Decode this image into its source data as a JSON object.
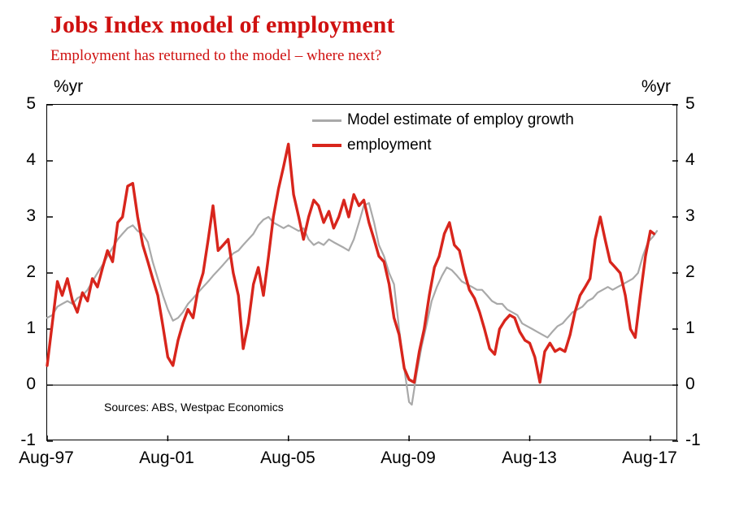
{
  "header": {
    "title": "Jobs Index model of employment",
    "subtitle": "Employment has returned to the model – where next?"
  },
  "chart": {
    "unit_left": "%yr",
    "unit_right": "%yr",
    "source_note": "Sources: ABS, Westpac Economics",
    "y_tick_labels": [
      "5",
      "4",
      "3",
      "2",
      "1",
      "0",
      "-1"
    ],
    "x_tick_labels": [
      "Aug-97",
      "Aug-01",
      "Aug-05",
      "Aug-09",
      "Aug-13",
      "Aug-17"
    ],
    "legend": [
      {
        "label": "Model estimate of employ growth",
        "color": "#a9a9a9"
      },
      {
        "label": "employment",
        "color": "#d8251c"
      }
    ]
  },
  "chart_data": {
    "type": "line",
    "title": "Jobs Index model of employment",
    "subtitle": "Employment has returned to the model – where next?",
    "ylabel": "%yr",
    "ylim": [
      -1,
      5
    ],
    "grid": false,
    "legend_position": "top-center-inside",
    "x_axis": {
      "unit": "year (monthly series)",
      "ticks": [
        "Aug-97",
        "Aug-01",
        "Aug-05",
        "Aug-09",
        "Aug-13",
        "Aug-17"
      ],
      "tick_years": [
        1997.58,
        2001.58,
        2005.58,
        2009.58,
        2013.58,
        2017.58
      ],
      "range_years": [
        1997.58,
        2018.5
      ]
    },
    "series": [
      {
        "name": "Model estimate of employ growth",
        "color": "#a9a9a9",
        "width": 2.2,
        "points": [
          [
            1997.58,
            1.2
          ],
          [
            1997.75,
            1.25
          ],
          [
            1997.92,
            1.4
          ],
          [
            1998.08,
            1.45
          ],
          [
            1998.25,
            1.5
          ],
          [
            1998.42,
            1.45
          ],
          [
            1998.58,
            1.55
          ],
          [
            1998.75,
            1.6
          ],
          [
            1998.92,
            1.7
          ],
          [
            1999.08,
            1.85
          ],
          [
            1999.25,
            2.0
          ],
          [
            1999.42,
            2.15
          ],
          [
            1999.58,
            2.3
          ],
          [
            1999.75,
            2.45
          ],
          [
            1999.92,
            2.6
          ],
          [
            2000.08,
            2.7
          ],
          [
            2000.25,
            2.8
          ],
          [
            2000.42,
            2.85
          ],
          [
            2000.58,
            2.75
          ],
          [
            2000.75,
            2.7
          ],
          [
            2000.92,
            2.55
          ],
          [
            2001.08,
            2.2
          ],
          [
            2001.25,
            1.9
          ],
          [
            2001.42,
            1.6
          ],
          [
            2001.58,
            1.35
          ],
          [
            2001.75,
            1.15
          ],
          [
            2001.92,
            1.2
          ],
          [
            2002.08,
            1.3
          ],
          [
            2002.25,
            1.45
          ],
          [
            2002.42,
            1.55
          ],
          [
            2002.58,
            1.65
          ],
          [
            2002.75,
            1.75
          ],
          [
            2002.92,
            1.85
          ],
          [
            2003.08,
            1.95
          ],
          [
            2003.25,
            2.05
          ],
          [
            2003.42,
            2.15
          ],
          [
            2003.58,
            2.25
          ],
          [
            2003.75,
            2.35
          ],
          [
            2003.92,
            2.4
          ],
          [
            2004.08,
            2.5
          ],
          [
            2004.25,
            2.6
          ],
          [
            2004.42,
            2.7
          ],
          [
            2004.58,
            2.85
          ],
          [
            2004.75,
            2.95
          ],
          [
            2004.92,
            3.0
          ],
          [
            2005.08,
            2.9
          ],
          [
            2005.25,
            2.85
          ],
          [
            2005.42,
            2.8
          ],
          [
            2005.58,
            2.85
          ],
          [
            2005.75,
            2.8
          ],
          [
            2005.92,
            2.75
          ],
          [
            2006.08,
            2.8
          ],
          [
            2006.25,
            2.6
          ],
          [
            2006.42,
            2.5
          ],
          [
            2006.58,
            2.55
          ],
          [
            2006.75,
            2.5
          ],
          [
            2006.92,
            2.6
          ],
          [
            2007.08,
            2.55
          ],
          [
            2007.25,
            2.5
          ],
          [
            2007.42,
            2.45
          ],
          [
            2007.58,
            2.4
          ],
          [
            2007.75,
            2.6
          ],
          [
            2007.92,
            2.9
          ],
          [
            2008.08,
            3.2
          ],
          [
            2008.25,
            3.25
          ],
          [
            2008.42,
            2.9
          ],
          [
            2008.58,
            2.5
          ],
          [
            2008.75,
            2.3
          ],
          [
            2008.92,
            2.0
          ],
          [
            2009.08,
            1.8
          ],
          [
            2009.25,
            1.0
          ],
          [
            2009.42,
            0.3
          ],
          [
            2009.58,
            -0.3
          ],
          [
            2009.67,
            -0.35
          ],
          [
            2009.83,
            0.2
          ],
          [
            2010.0,
            0.7
          ],
          [
            2010.17,
            1.1
          ],
          [
            2010.33,
            1.5
          ],
          [
            2010.5,
            1.75
          ],
          [
            2010.67,
            1.95
          ],
          [
            2010.83,
            2.1
          ],
          [
            2011.0,
            2.05
          ],
          [
            2011.17,
            1.95
          ],
          [
            2011.33,
            1.85
          ],
          [
            2011.5,
            1.8
          ],
          [
            2011.67,
            1.75
          ],
          [
            2011.83,
            1.7
          ],
          [
            2012.0,
            1.7
          ],
          [
            2012.17,
            1.6
          ],
          [
            2012.33,
            1.5
          ],
          [
            2012.5,
            1.45
          ],
          [
            2012.67,
            1.45
          ],
          [
            2012.83,
            1.35
          ],
          [
            2013.0,
            1.3
          ],
          [
            2013.17,
            1.25
          ],
          [
            2013.33,
            1.1
          ],
          [
            2013.5,
            1.05
          ],
          [
            2013.67,
            1.0
          ],
          [
            2013.83,
            0.95
          ],
          [
            2014.0,
            0.9
          ],
          [
            2014.17,
            0.85
          ],
          [
            2014.33,
            0.95
          ],
          [
            2014.5,
            1.05
          ],
          [
            2014.67,
            1.1
          ],
          [
            2014.83,
            1.2
          ],
          [
            2015.0,
            1.3
          ],
          [
            2015.17,
            1.35
          ],
          [
            2015.33,
            1.4
          ],
          [
            2015.5,
            1.5
          ],
          [
            2015.67,
            1.55
          ],
          [
            2015.83,
            1.65
          ],
          [
            2016.0,
            1.7
          ],
          [
            2016.17,
            1.75
          ],
          [
            2016.33,
            1.7
          ],
          [
            2016.5,
            1.75
          ],
          [
            2016.67,
            1.8
          ],
          [
            2016.83,
            1.85
          ],
          [
            2017.0,
            1.9
          ],
          [
            2017.17,
            2.0
          ],
          [
            2017.33,
            2.3
          ],
          [
            2017.5,
            2.55
          ],
          [
            2017.67,
            2.65
          ],
          [
            2017.8,
            2.75
          ]
        ]
      },
      {
        "name": "employment",
        "color": "#d8251c",
        "width": 3.4,
        "points": [
          [
            1997.58,
            0.35
          ],
          [
            1997.75,
            1.1
          ],
          [
            1997.92,
            1.85
          ],
          [
            1998.08,
            1.6
          ],
          [
            1998.25,
            1.9
          ],
          [
            1998.42,
            1.5
          ],
          [
            1998.58,
            1.3
          ],
          [
            1998.75,
            1.65
          ],
          [
            1998.92,
            1.5
          ],
          [
            1999.08,
            1.9
          ],
          [
            1999.25,
            1.75
          ],
          [
            1999.42,
            2.1
          ],
          [
            1999.58,
            2.4
          ],
          [
            1999.75,
            2.2
          ],
          [
            1999.92,
            2.9
          ],
          [
            2000.08,
            3.0
          ],
          [
            2000.25,
            3.55
          ],
          [
            2000.42,
            3.6
          ],
          [
            2000.58,
            3.0
          ],
          [
            2000.75,
            2.5
          ],
          [
            2000.92,
            2.2
          ],
          [
            2001.08,
            1.9
          ],
          [
            2001.25,
            1.6
          ],
          [
            2001.42,
            1.05
          ],
          [
            2001.58,
            0.5
          ],
          [
            2001.75,
            0.35
          ],
          [
            2001.92,
            0.8
          ],
          [
            2002.08,
            1.1
          ],
          [
            2002.25,
            1.35
          ],
          [
            2002.42,
            1.2
          ],
          [
            2002.58,
            1.7
          ],
          [
            2002.75,
            2.0
          ],
          [
            2002.92,
            2.6
          ],
          [
            2003.08,
            3.2
          ],
          [
            2003.25,
            2.4
          ],
          [
            2003.42,
            2.5
          ],
          [
            2003.58,
            2.6
          ],
          [
            2003.75,
            2.0
          ],
          [
            2003.92,
            1.6
          ],
          [
            2004.08,
            0.65
          ],
          [
            2004.25,
            1.1
          ],
          [
            2004.42,
            1.8
          ],
          [
            2004.58,
            2.1
          ],
          [
            2004.75,
            1.6
          ],
          [
            2004.92,
            2.3
          ],
          [
            2005.08,
            3.0
          ],
          [
            2005.25,
            3.5
          ],
          [
            2005.42,
            3.9
          ],
          [
            2005.58,
            4.3
          ],
          [
            2005.75,
            3.4
          ],
          [
            2005.92,
            3.0
          ],
          [
            2006.08,
            2.6
          ],
          [
            2006.25,
            3.0
          ],
          [
            2006.42,
            3.3
          ],
          [
            2006.58,
            3.2
          ],
          [
            2006.75,
            2.9
          ],
          [
            2006.92,
            3.1
          ],
          [
            2007.08,
            2.8
          ],
          [
            2007.25,
            3.0
          ],
          [
            2007.42,
            3.3
          ],
          [
            2007.58,
            3.0
          ],
          [
            2007.75,
            3.4
          ],
          [
            2007.92,
            3.2
          ],
          [
            2008.08,
            3.3
          ],
          [
            2008.25,
            2.9
          ],
          [
            2008.42,
            2.6
          ],
          [
            2008.58,
            2.3
          ],
          [
            2008.75,
            2.2
          ],
          [
            2008.92,
            1.8
          ],
          [
            2009.08,
            1.2
          ],
          [
            2009.25,
            0.9
          ],
          [
            2009.42,
            0.3
          ],
          [
            2009.58,
            0.1
          ],
          [
            2009.75,
            0.05
          ],
          [
            2009.92,
            0.6
          ],
          [
            2010.08,
            1.0
          ],
          [
            2010.25,
            1.6
          ],
          [
            2010.42,
            2.1
          ],
          [
            2010.58,
            2.3
          ],
          [
            2010.75,
            2.7
          ],
          [
            2010.92,
            2.9
          ],
          [
            2011.08,
            2.5
          ],
          [
            2011.25,
            2.4
          ],
          [
            2011.42,
            2.0
          ],
          [
            2011.58,
            1.7
          ],
          [
            2011.75,
            1.55
          ],
          [
            2011.92,
            1.3
          ],
          [
            2012.08,
            1.0
          ],
          [
            2012.25,
            0.65
          ],
          [
            2012.42,
            0.55
          ],
          [
            2012.58,
            1.0
          ],
          [
            2012.75,
            1.15
          ],
          [
            2012.92,
            1.25
          ],
          [
            2013.08,
            1.2
          ],
          [
            2013.25,
            0.95
          ],
          [
            2013.42,
            0.8
          ],
          [
            2013.58,
            0.75
          ],
          [
            2013.75,
            0.5
          ],
          [
            2013.92,
            0.05
          ],
          [
            2014.08,
            0.6
          ],
          [
            2014.25,
            0.75
          ],
          [
            2014.42,
            0.6
          ],
          [
            2014.58,
            0.65
          ],
          [
            2014.75,
            0.6
          ],
          [
            2014.92,
            0.9
          ],
          [
            2015.08,
            1.3
          ],
          [
            2015.25,
            1.6
          ],
          [
            2015.42,
            1.75
          ],
          [
            2015.58,
            1.9
          ],
          [
            2015.75,
            2.6
          ],
          [
            2015.92,
            3.0
          ],
          [
            2016.08,
            2.6
          ],
          [
            2016.25,
            2.2
          ],
          [
            2016.42,
            2.1
          ],
          [
            2016.58,
            2.0
          ],
          [
            2016.75,
            1.6
          ],
          [
            2016.92,
            1.0
          ],
          [
            2017.08,
            0.85
          ],
          [
            2017.25,
            1.6
          ],
          [
            2017.42,
            2.3
          ],
          [
            2017.58,
            2.75
          ],
          [
            2017.7,
            2.7
          ]
        ]
      }
    ]
  }
}
